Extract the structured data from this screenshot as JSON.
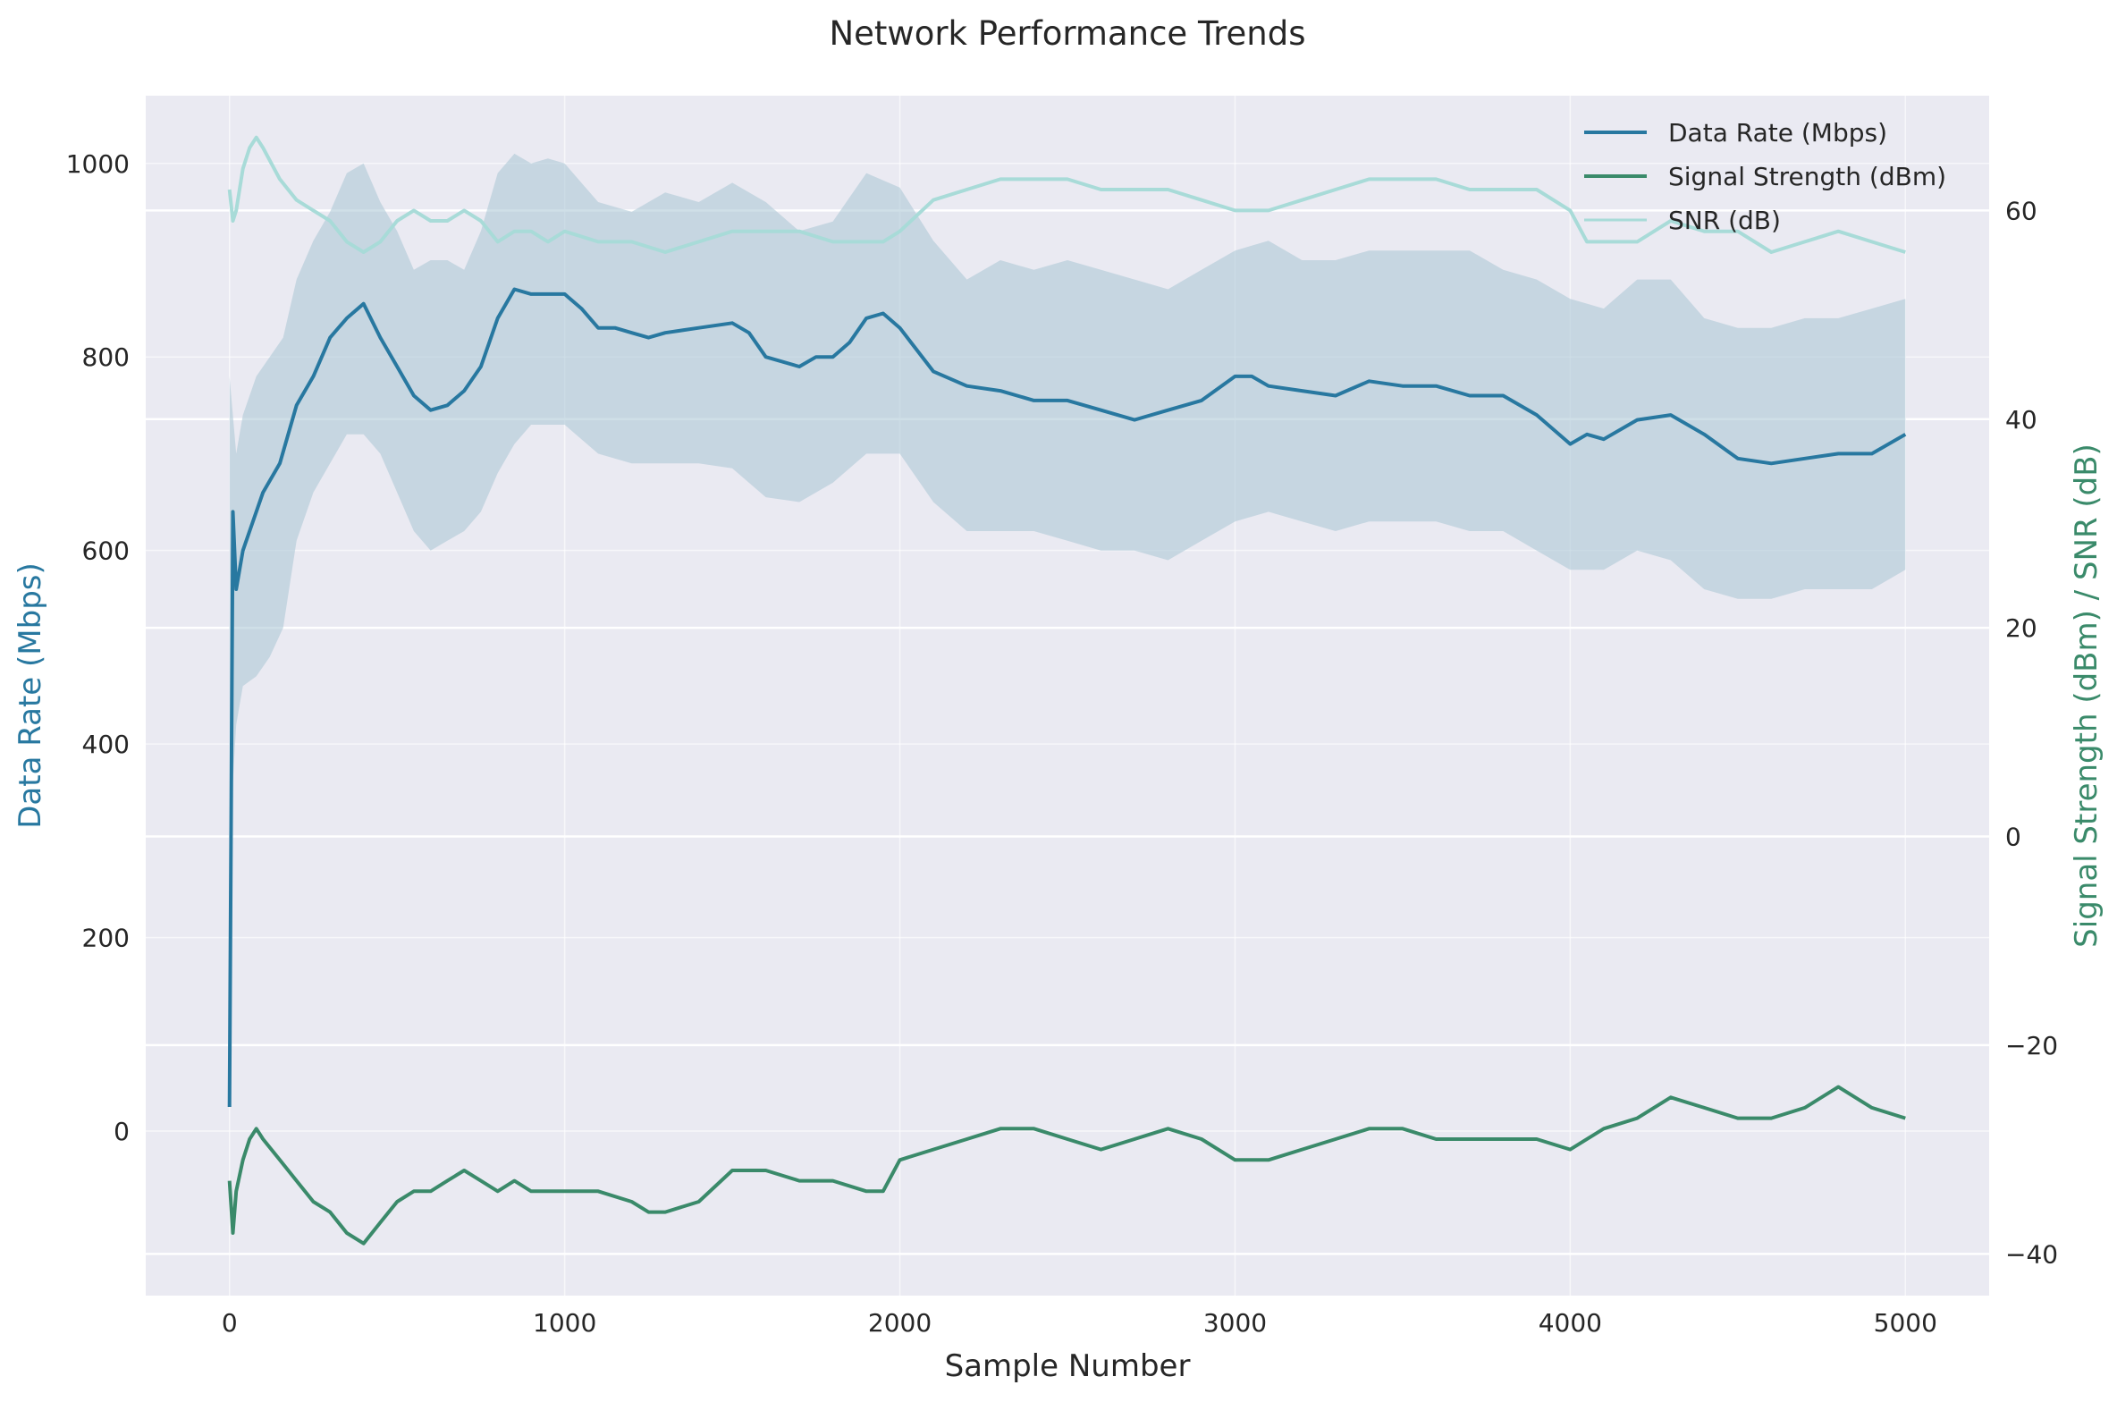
{
  "chart_data": {
    "type": "line",
    "title": "Network Performance Trends",
    "xlabel": "Sample Number",
    "ylabel_left": "Data Rate (Mbps)",
    "ylabel_right": "Signal Strength (dBm) / SNR (dB)",
    "xlim": [
      -250,
      5250
    ],
    "ylim_left": [
      -170,
      1070
    ],
    "ylim_right": [
      -44,
      71
    ],
    "x_ticks": [
      0,
      1000,
      2000,
      3000,
      4000,
      5000
    ],
    "x_tick_labels": [
      "0",
      "1000",
      "2000",
      "3000",
      "4000",
      "5000"
    ],
    "y_left_ticks": [
      0,
      200,
      400,
      600,
      800,
      1000
    ],
    "y_left_tick_labels": [
      "0",
      "200",
      "400",
      "600",
      "800",
      "1000"
    ],
    "y_right_ticks": [
      -40,
      -20,
      0,
      20,
      40,
      60
    ],
    "y_right_tick_labels": [
      "−40",
      "−20",
      "0",
      "20",
      "40",
      "60"
    ],
    "grid": true,
    "legend_position": "top-right",
    "colors": {
      "data_rate": "#2878a0",
      "signal": "#3a8a6a",
      "snr": "#a8dbd8",
      "band": "#a8c4d4",
      "plot_bg": "#eaeaf2",
      "grid": "#ffffff",
      "left_label": "#2878a0",
      "right_label": "#3a8a6a"
    },
    "series": [
      {
        "name": "Data Rate (Mbps)",
        "axis": "left",
        "x": [
          0,
          10,
          20,
          40,
          60,
          100,
          150,
          200,
          250,
          300,
          350,
          400,
          450,
          500,
          550,
          600,
          650,
          700,
          750,
          800,
          850,
          900,
          950,
          1000,
          1050,
          1100,
          1150,
          1200,
          1250,
          1300,
          1400,
          1500,
          1550,
          1600,
          1700,
          1750,
          1800,
          1850,
          1900,
          1950,
          2000,
          2100,
          2200,
          2300,
          2400,
          2500,
          2600,
          2700,
          2800,
          2900,
          3000,
          3050,
          3100,
          3200,
          3300,
          3400,
          3500,
          3600,
          3700,
          3800,
          3900,
          4000,
          4050,
          4100,
          4200,
          4300,
          4400,
          4500,
          4600,
          4700,
          4800,
          4900,
          5000
        ],
        "values": [
          25,
          640,
          560,
          600,
          620,
          660,
          690,
          750,
          780,
          820,
          840,
          855,
          820,
          790,
          760,
          745,
          750,
          765,
          790,
          840,
          870,
          865,
          865,
          865,
          850,
          830,
          830,
          825,
          820,
          825,
          830,
          835,
          825,
          800,
          790,
          800,
          800,
          815,
          840,
          845,
          830,
          785,
          770,
          765,
          755,
          755,
          745,
          735,
          745,
          755,
          780,
          780,
          770,
          765,
          760,
          775,
          770,
          770,
          760,
          760,
          740,
          710,
          720,
          715,
          735,
          740,
          720,
          695,
          690,
          695,
          700,
          700,
          720
        ]
      },
      {
        "name": "Signal Strength (dBm)",
        "axis": "right",
        "x": [
          0,
          10,
          20,
          40,
          60,
          80,
          100,
          150,
          200,
          250,
          300,
          350,
          400,
          450,
          500,
          550,
          600,
          650,
          700,
          750,
          800,
          850,
          900,
          950,
          1000,
          1100,
          1200,
          1250,
          1300,
          1400,
          1500,
          1600,
          1700,
          1800,
          1900,
          1950,
          2000,
          2100,
          2200,
          2300,
          2400,
          2500,
          2600,
          2700,
          2800,
          2900,
          3000,
          3100,
          3200,
          3300,
          3400,
          3500,
          3600,
          3700,
          3800,
          3900,
          4000,
          4100,
          4200,
          4300,
          4400,
          4500,
          4600,
          4700,
          4800,
          4900,
          5000
        ],
        "values": [
          -33,
          -38,
          -34,
          -31,
          -29,
          -28,
          -29,
          -31,
          -33,
          -35,
          -36,
          -38,
          -39,
          -37,
          -35,
          -34,
          -34,
          -33,
          -32,
          -33,
          -34,
          -33,
          -34,
          -34,
          -34,
          -34,
          -35,
          -36,
          -36,
          -35,
          -32,
          -32,
          -33,
          -33,
          -34,
          -34,
          -31,
          -30,
          -29,
          -28,
          -28,
          -29,
          -30,
          -29,
          -28,
          -29,
          -31,
          -31,
          -30,
          -29,
          -28,
          -28,
          -29,
          -29,
          -29,
          -29,
          -30,
          -28,
          -27,
          -25,
          -26,
          -27,
          -27,
          -26,
          -24,
          -26,
          -27
        ]
      },
      {
        "name": "SNR (dB)",
        "axis": "right",
        "x": [
          0,
          10,
          20,
          40,
          60,
          80,
          100,
          150,
          200,
          250,
          300,
          350,
          400,
          450,
          500,
          550,
          600,
          650,
          700,
          750,
          800,
          850,
          900,
          950,
          1000,
          1100,
          1200,
          1300,
          1400,
          1500,
          1600,
          1700,
          1800,
          1900,
          1950,
          2000,
          2100,
          2200,
          2300,
          2400,
          2500,
          2600,
          2700,
          2800,
          2900,
          3000,
          3100,
          3200,
          3300,
          3400,
          3500,
          3600,
          3700,
          3800,
          3900,
          4000,
          4050,
          4100,
          4200,
          4300,
          4400,
          4500,
          4600,
          4700,
          4800,
          4900,
          5000
        ],
        "values": [
          62,
          59,
          60,
          64,
          66,
          67,
          66,
          63,
          61,
          60,
          59,
          57,
          56,
          57,
          59,
          60,
          59,
          59,
          60,
          59,
          57,
          58,
          58,
          57,
          58,
          57,
          57,
          56,
          57,
          58,
          58,
          58,
          57,
          57,
          57,
          58,
          61,
          62,
          63,
          63,
          63,
          62,
          62,
          62,
          61,
          60,
          60,
          61,
          62,
          63,
          63,
          63,
          62,
          62,
          62,
          60,
          57,
          57,
          57,
          59,
          58,
          58,
          56,
          57,
          58,
          57,
          56
        ]
      }
    ],
    "band": {
      "axis": "left",
      "x": [
        0,
        20,
        40,
        80,
        120,
        160,
        200,
        250,
        300,
        350,
        400,
        450,
        500,
        550,
        600,
        650,
        700,
        750,
        800,
        850,
        900,
        950,
        1000,
        1100,
        1200,
        1300,
        1400,
        1500,
        1600,
        1700,
        1800,
        1900,
        2000,
        2100,
        2200,
        2300,
        2400,
        2500,
        2600,
        2700,
        2800,
        2900,
        3000,
        3100,
        3200,
        3300,
        3400,
        3500,
        3600,
        3700,
        3800,
        3900,
        4000,
        4100,
        4200,
        4300,
        4400,
        4500,
        4600,
        4700,
        4800,
        4900,
        5000
      ],
      "upper": [
        780,
        700,
        740,
        780,
        800,
        820,
        880,
        920,
        950,
        990,
        1000,
        960,
        930,
        890,
        900,
        900,
        890,
        930,
        990,
        1010,
        1000,
        1005,
        1000,
        960,
        950,
        970,
        960,
        980,
        960,
        930,
        940,
        990,
        975,
        920,
        880,
        900,
        890,
        900,
        890,
        880,
        870,
        890,
        910,
        920,
        900,
        900,
        910,
        910,
        910,
        910,
        890,
        880,
        860,
        850,
        880,
        880,
        840,
        830,
        830,
        840,
        840,
        850,
        860
      ],
      "lower": [
        300,
        420,
        460,
        470,
        490,
        520,
        610,
        660,
        690,
        720,
        720,
        700,
        660,
        620,
        600,
        610,
        620,
        640,
        680,
        710,
        730,
        730,
        730,
        700,
        690,
        690,
        690,
        685,
        655,
        650,
        670,
        700,
        700,
        650,
        620,
        620,
        620,
        610,
        600,
        600,
        590,
        610,
        630,
        640,
        630,
        620,
        630,
        630,
        630,
        620,
        620,
        600,
        580,
        580,
        600,
        590,
        560,
        550,
        550,
        560,
        560,
        560,
        580
      ]
    }
  }
}
